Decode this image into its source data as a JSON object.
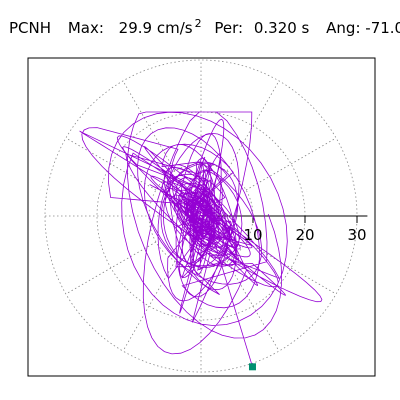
{
  "header": {
    "station": "PCNH",
    "max_label": "Max:",
    "max_value": "29.9 cm/s",
    "max_sup": "2",
    "per_label": "Per:",
    "per_value": "0.320 s",
    "ang_label": "Ang:",
    "ang_value": "-71.0"
  },
  "colors": {
    "trace": "#9400d3",
    "marker": "#009070",
    "grid": "#888888",
    "axis": "#000000"
  },
  "chart_data": {
    "type": "polar-orbit",
    "radial_ticks": [
      10,
      20,
      30
    ],
    "radial_max": 32,
    "grid_circles": [
      10,
      20,
      30
    ],
    "spoke_step_deg": 30,
    "grid": true,
    "trace_seed": 7,
    "end_marker": [
      9.9,
      -29.0
    ]
  }
}
